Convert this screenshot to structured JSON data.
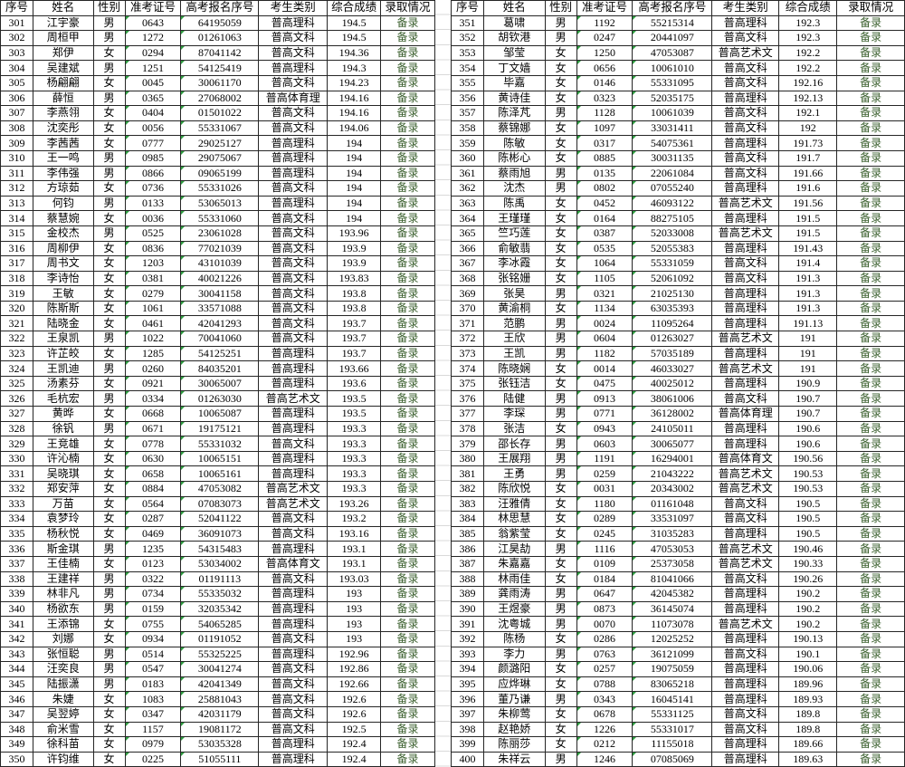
{
  "colors": {
    "status_text": "#3a5f2d",
    "number_as_text_triangle": "#2f9e41",
    "grid_border": "#262626",
    "gap_gridline": "#d9d9d9"
  },
  "table": {
    "columns": [
      "序号",
      "姓名",
      "性别",
      "准考证号",
      "高考报名序号",
      "考生类别",
      "综合成绩",
      "录取情况"
    ],
    "status_label": "备录",
    "left_rows": [
      [
        "301",
        "江宇豪",
        "男",
        "0643",
        "64195059",
        "普高理科",
        "194.5",
        "备录"
      ],
      [
        "302",
        "周桓甲",
        "男",
        "1272",
        "01261063",
        "普高文科",
        "194.5",
        "备录"
      ],
      [
        "303",
        "郑伊",
        "女",
        "0294",
        "87041142",
        "普高文科",
        "194.36",
        "备录"
      ],
      [
        "304",
        "吴建斌",
        "男",
        "1251",
        "54125419",
        "普高理科",
        "194.3",
        "备录"
      ],
      [
        "305",
        "杨翩翩",
        "女",
        "0045",
        "30061170",
        "普高文科",
        "194.23",
        "备录"
      ],
      [
        "306",
        "薛恒",
        "男",
        "0365",
        "27068002",
        "普高体育理",
        "194.16",
        "备录"
      ],
      [
        "307",
        "李燕翎",
        "女",
        "0404",
        "01501022",
        "普高文科",
        "194.16",
        "备录"
      ],
      [
        "308",
        "沈奕彤",
        "女",
        "0056",
        "55331067",
        "普高文科",
        "194.06",
        "备录"
      ],
      [
        "309",
        "李茜茜",
        "女",
        "0777",
        "29025127",
        "普高理科",
        "194",
        "备录"
      ],
      [
        "310",
        "王一鸣",
        "男",
        "0985",
        "29075067",
        "普高理科",
        "194",
        "备录"
      ],
      [
        "311",
        "李伟强",
        "男",
        "0866",
        "09065199",
        "普高理科",
        "194",
        "备录"
      ],
      [
        "312",
        "方琼茹",
        "女",
        "0736",
        "55331026",
        "普高文科",
        "194",
        "备录"
      ],
      [
        "313",
        "何钧",
        "男",
        "0133",
        "53065013",
        "普高理科",
        "194",
        "备录"
      ],
      [
        "314",
        "蔡慧婉",
        "女",
        "0036",
        "55331060",
        "普高文科",
        "194",
        "备录"
      ],
      [
        "315",
        "金校杰",
        "男",
        "0525",
        "23061028",
        "普高文科",
        "193.96",
        "备录"
      ],
      [
        "316",
        "周柳伊",
        "女",
        "0836",
        "77021039",
        "普高文科",
        "193.9",
        "备录"
      ],
      [
        "317",
        "周书文",
        "女",
        "1203",
        "43101039",
        "普高文科",
        "193.9",
        "备录"
      ],
      [
        "318",
        "李诗怡",
        "女",
        "0381",
        "40021226",
        "普高文科",
        "193.83",
        "备录"
      ],
      [
        "319",
        "王敏",
        "女",
        "0279",
        "30041158",
        "普高文科",
        "193.8",
        "备录"
      ],
      [
        "320",
        "陈斯斯",
        "女",
        "1061",
        "33571088",
        "普高文科",
        "193.8",
        "备录"
      ],
      [
        "321",
        "陆晓金",
        "女",
        "0461",
        "42041293",
        "普高文科",
        "193.7",
        "备录"
      ],
      [
        "322",
        "王泉凯",
        "男",
        "1022",
        "70041060",
        "普高文科",
        "193.7",
        "备录"
      ],
      [
        "323",
        "许芷皎",
        "女",
        "1285",
        "54125251",
        "普高理科",
        "193.7",
        "备录"
      ],
      [
        "324",
        "王凯迪",
        "男",
        "0260",
        "84035201",
        "普高理科",
        "193.66",
        "备录"
      ],
      [
        "325",
        "汤素芬",
        "女",
        "0921",
        "30065007",
        "普高理科",
        "193.6",
        "备录"
      ],
      [
        "326",
        "毛杭宏",
        "男",
        "0334",
        "01263030",
        "普高艺术文",
        "193.5",
        "备录"
      ],
      [
        "327",
        "黄晔",
        "女",
        "0668",
        "10065087",
        "普高理科",
        "193.5",
        "备录"
      ],
      [
        "328",
        "徐钒",
        "男",
        "0671",
        "19175121",
        "普高理科",
        "193.3",
        "备录"
      ],
      [
        "329",
        "王竞雄",
        "女",
        "0778",
        "55331032",
        "普高文科",
        "193.3",
        "备录"
      ],
      [
        "330",
        "许沁楠",
        "女",
        "0630",
        "10065151",
        "普高理科",
        "193.3",
        "备录"
      ],
      [
        "331",
        "吴晓琪",
        "女",
        "0658",
        "10065161",
        "普高理科",
        "193.3",
        "备录"
      ],
      [
        "332",
        "郑安萍",
        "女",
        "0884",
        "47053082",
        "普高艺术文",
        "193.3",
        "备录"
      ],
      [
        "333",
        "万苗",
        "女",
        "0564",
        "07083073",
        "普高艺术文",
        "193.26",
        "备录"
      ],
      [
        "334",
        "袁梦玲",
        "女",
        "0287",
        "52041122",
        "普高文科",
        "193.2",
        "备录"
      ],
      [
        "335",
        "杨秋悦",
        "女",
        "0469",
        "36091073",
        "普高文科",
        "193.16",
        "备录"
      ],
      [
        "336",
        "斯金琪",
        "男",
        "1235",
        "54315483",
        "普高理科",
        "193.1",
        "备录"
      ],
      [
        "337",
        "王佳楠",
        "女",
        "0123",
        "53034002",
        "普高体育文",
        "193.1",
        "备录"
      ],
      [
        "338",
        "王建祥",
        "男",
        "0322",
        "01191113",
        "普高文科",
        "193.03",
        "备录"
      ],
      [
        "339",
        "林非凡",
        "男",
        "0734",
        "55335032",
        "普高理科",
        "193",
        "备录"
      ],
      [
        "340",
        "杨欲东",
        "男",
        "0159",
        "32035342",
        "普高理科",
        "193",
        "备录"
      ],
      [
        "341",
        "王添锦",
        "女",
        "0755",
        "54065285",
        "普高理科",
        "193",
        "备录"
      ],
      [
        "342",
        "刘娜",
        "女",
        "0934",
        "01191052",
        "普高文科",
        "193",
        "备录"
      ],
      [
        "343",
        "张恒聪",
        "男",
        "0514",
        "55325225",
        "普高理科",
        "192.96",
        "备录"
      ],
      [
        "344",
        "汪奕良",
        "男",
        "0547",
        "30041274",
        "普高文科",
        "192.86",
        "备录"
      ],
      [
        "345",
        "陆振潇",
        "男",
        "0183",
        "42041349",
        "普高文科",
        "192.66",
        "备录"
      ],
      [
        "346",
        "朱婕",
        "女",
        "1083",
        "25881043",
        "普高文科",
        "192.6",
        "备录"
      ],
      [
        "347",
        "吴翌婷",
        "女",
        "0347",
        "42031179",
        "普高文科",
        "192.6",
        "备录"
      ],
      [
        "348",
        "俞米雪",
        "女",
        "1157",
        "19081172",
        "普高文科",
        "192.5",
        "备录"
      ],
      [
        "349",
        "徐科苗",
        "女",
        "0979",
        "53035328",
        "普高理科",
        "192.4",
        "备录"
      ],
      [
        "350",
        "许钧维",
        "女",
        "0225",
        "51055111",
        "普高理科",
        "192.4",
        "备录"
      ]
    ],
    "right_rows": [
      [
        "351",
        "葛啸",
        "男",
        "1192",
        "55215314",
        "普高理科",
        "192.3",
        "备录"
      ],
      [
        "352",
        "胡钦港",
        "男",
        "0247",
        "20441097",
        "普高文科",
        "192.3",
        "备录"
      ],
      [
        "353",
        "邹莹",
        "女",
        "1250",
        "47053087",
        "普高艺术文",
        "192.2",
        "备录"
      ],
      [
        "354",
        "丁文嫱",
        "女",
        "0656",
        "10061010",
        "普高文科",
        "192.2",
        "备录"
      ],
      [
        "355",
        "毕嘉",
        "女",
        "0146",
        "55331095",
        "普高文科",
        "192.16",
        "备录"
      ],
      [
        "356",
        "黄诗佳",
        "女",
        "0323",
        "52035175",
        "普高理科",
        "192.13",
        "备录"
      ],
      [
        "357",
        "陈泽芃",
        "男",
        "1128",
        "10061039",
        "普高文科",
        "192.1",
        "备录"
      ],
      [
        "358",
        "蔡锦娜",
        "女",
        "1097",
        "33031411",
        "普高文科",
        "192",
        "备录"
      ],
      [
        "359",
        "陈敏",
        "女",
        "0317",
        "54075361",
        "普高理科",
        "191.73",
        "备录"
      ],
      [
        "360",
        "陈彬心",
        "女",
        "0885",
        "30031135",
        "普高文科",
        "191.7",
        "备录"
      ],
      [
        "361",
        "蔡雨旭",
        "男",
        "0135",
        "22061084",
        "普高文科",
        "191.66",
        "备录"
      ],
      [
        "362",
        "沈杰",
        "男",
        "0802",
        "07055240",
        "普高理科",
        "191.6",
        "备录"
      ],
      [
        "363",
        "陈禹",
        "女",
        "0452",
        "46093122",
        "普高艺术文",
        "191.56",
        "备录"
      ],
      [
        "364",
        "王瑾瑾",
        "女",
        "0164",
        "88275105",
        "普高理科",
        "191.5",
        "备录"
      ],
      [
        "365",
        "竺巧莲",
        "女",
        "0387",
        "52033008",
        "普高艺术文",
        "191.5",
        "备录"
      ],
      [
        "366",
        "俞敏翡",
        "女",
        "0535",
        "52055383",
        "普高理科",
        "191.43",
        "备录"
      ],
      [
        "367",
        "李冰霞",
        "女",
        "1064",
        "55331059",
        "普高文科",
        "191.4",
        "备录"
      ],
      [
        "368",
        "张铭姗",
        "女",
        "1105",
        "52061092",
        "普高文科",
        "191.3",
        "备录"
      ],
      [
        "369",
        "张昊",
        "男",
        "0321",
        "21025130",
        "普高理科",
        "191.3",
        "备录"
      ],
      [
        "370",
        "黄渝桐",
        "女",
        "1134",
        "63035393",
        "普高理科",
        "191.3",
        "备录"
      ],
      [
        "371",
        "范鹏",
        "男",
        "0024",
        "11095264",
        "普高理科",
        "191.13",
        "备录"
      ],
      [
        "372",
        "王欣",
        "男",
        "0604",
        "01263027",
        "普高艺术文",
        "191",
        "备录"
      ],
      [
        "373",
        "王凯",
        "男",
        "1182",
        "57035189",
        "普高理科",
        "191",
        "备录"
      ],
      [
        "374",
        "陈晓娴",
        "女",
        "0014",
        "46033027",
        "普高艺术文",
        "191",
        "备录"
      ],
      [
        "375",
        "张钰洁",
        "女",
        "0475",
        "40025012",
        "普高理科",
        "190.9",
        "备录"
      ],
      [
        "376",
        "陆健",
        "男",
        "0913",
        "38061006",
        "普高文科",
        "190.7",
        "备录"
      ],
      [
        "377",
        "李琛",
        "男",
        "0771",
        "36128002",
        "普高体育理",
        "190.7",
        "备录"
      ],
      [
        "378",
        "张洁",
        "女",
        "0943",
        "24105011",
        "普高理科",
        "190.6",
        "备录"
      ],
      [
        "379",
        "邵长存",
        "男",
        "0603",
        "30065077",
        "普高理科",
        "190.6",
        "备录"
      ],
      [
        "380",
        "王展翔",
        "男",
        "1191",
        "16294001",
        "普高体育文",
        "190.56",
        "备录"
      ],
      [
        "381",
        "王勇",
        "男",
        "0259",
        "21043222",
        "普高艺术文",
        "190.53",
        "备录"
      ],
      [
        "382",
        "陈欣悦",
        "女",
        "0031",
        "20343002",
        "普高艺术文",
        "190.53",
        "备录"
      ],
      [
        "383",
        "汪雅倩",
        "女",
        "1180",
        "01161048",
        "普高文科",
        "190.5",
        "备录"
      ],
      [
        "384",
        "林思慧",
        "女",
        "0289",
        "33531097",
        "普高文科",
        "190.5",
        "备录"
      ],
      [
        "385",
        "翁紫莹",
        "女",
        "0245",
        "31035283",
        "普高理科",
        "190.5",
        "备录"
      ],
      [
        "386",
        "江昊劼",
        "男",
        "1116",
        "47053053",
        "普高艺术文",
        "190.46",
        "备录"
      ],
      [
        "387",
        "朱嘉嘉",
        "女",
        "0109",
        "25373058",
        "普高艺术文",
        "190.33",
        "备录"
      ],
      [
        "388",
        "林雨佳",
        "女",
        "0184",
        "81041066",
        "普高文科",
        "190.26",
        "备录"
      ],
      [
        "389",
        "龚雨涛",
        "男",
        "0647",
        "42045382",
        "普高理科",
        "190.2",
        "备录"
      ],
      [
        "390",
        "王煜豪",
        "男",
        "0873",
        "36145074",
        "普高理科",
        "190.2",
        "备录"
      ],
      [
        "391",
        "沈粤城",
        "男",
        "0070",
        "11073078",
        "普高艺术文",
        "190.2",
        "备录"
      ],
      [
        "392",
        "陈杨",
        "女",
        "0286",
        "12025252",
        "普高理科",
        "190.13",
        "备录"
      ],
      [
        "393",
        "李力",
        "男",
        "0763",
        "36121099",
        "普高文科",
        "190.1",
        "备录"
      ],
      [
        "394",
        "颜潞阳",
        "女",
        "0257",
        "19075059",
        "普高理科",
        "190.06",
        "备录"
      ],
      [
        "395",
        "应烨琳",
        "女",
        "0788",
        "83065218",
        "普高理科",
        "189.96",
        "备录"
      ],
      [
        "396",
        "董乃谦",
        "男",
        "0343",
        "16045141",
        "普高理科",
        "189.93",
        "备录"
      ],
      [
        "397",
        "朱柳莺",
        "女",
        "0678",
        "55331125",
        "普高文科",
        "189.8",
        "备录"
      ],
      [
        "398",
        "赵艳娇",
        "女",
        "1226",
        "55331017",
        "普高文科",
        "189.8",
        "备录"
      ],
      [
        "399",
        "陈丽莎",
        "女",
        "0212",
        "11155018",
        "普高理科",
        "189.66",
        "备录"
      ],
      [
        "400",
        "朱祥云",
        "男",
        "1246",
        "07085069",
        "普高理科",
        "189.63",
        "备录"
      ]
    ]
  }
}
